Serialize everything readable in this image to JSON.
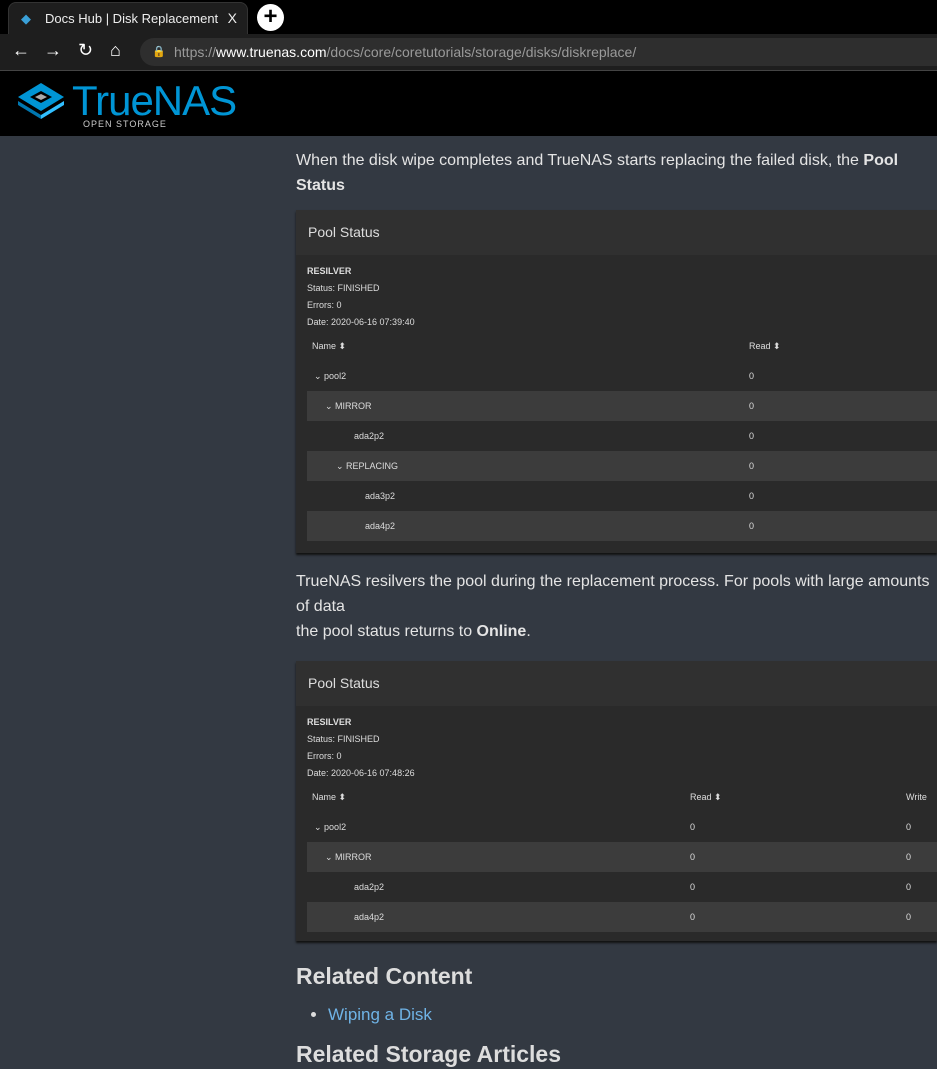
{
  "browser": {
    "tab_title": "Docs Hub | Disk Replacement",
    "close": "X",
    "new_tab": "+",
    "url_prefix": "https://",
    "url_host": "www.truenas.com",
    "url_path": "/docs/core/coretutorials/storage/disks/diskreplace/"
  },
  "site": {
    "logo": "TrueNAS",
    "logo_sub": "OPEN STORAGE",
    "brand_color": "#0095d5"
  },
  "para1": {
    "text": "When the disk wipe completes and TrueNAS starts replacing the failed disk, the ",
    "bold": "Pool Status"
  },
  "card1": {
    "title": "Pool Status",
    "scan": "RESILVER",
    "status": "Status: FINISHED",
    "errors": "Errors: 0",
    "date": "Date: 2020-06-16 07:39:40",
    "columns": [
      "Name",
      "Read"
    ],
    "rows": [
      {
        "name": "pool2",
        "read": "0",
        "chev": true,
        "indent": 0
      },
      {
        "name": "MIRROR",
        "read": "0",
        "chev": true,
        "indent": 1
      },
      {
        "name": "ada2p2",
        "read": "0",
        "chev": false,
        "indent": 2
      },
      {
        "name": "REPLACING",
        "read": "0",
        "chev": true,
        "indent": 2
      },
      {
        "name": "ada3p2",
        "read": "0",
        "chev": false,
        "indent": 3
      },
      {
        "name": "ada4p2",
        "read": "0",
        "chev": false,
        "indent": 3
      }
    ]
  },
  "para2": {
    "line1": "TrueNAS resilvers the pool during the replacement process. For pools with large amounts of data",
    "line2_pre": "the pool status returns to ",
    "line2_bold": "Online",
    "line2_post": "."
  },
  "card2": {
    "title": "Pool Status",
    "scan": "RESILVER",
    "status": "Status: FINISHED",
    "errors": "Errors: 0",
    "date": "Date: 2020-06-16 07:48:26",
    "columns": [
      "Name",
      "Read",
      "Write"
    ],
    "rows": [
      {
        "name": "pool2",
        "read": "0",
        "write": "0",
        "chev": true,
        "indent": 0
      },
      {
        "name": "MIRROR",
        "read": "0",
        "write": "0",
        "chev": true,
        "indent": 1
      },
      {
        "name": "ada2p2",
        "read": "0",
        "write": "0",
        "chev": false,
        "indent": 2
      },
      {
        "name": "ada4p2",
        "read": "0",
        "write": "0",
        "chev": false,
        "indent": 2
      }
    ]
  },
  "related": {
    "heading": "Related Content",
    "links": [
      "Wiping a Disk"
    ]
  },
  "related_storage": {
    "heading": "Related Storage Articles"
  }
}
